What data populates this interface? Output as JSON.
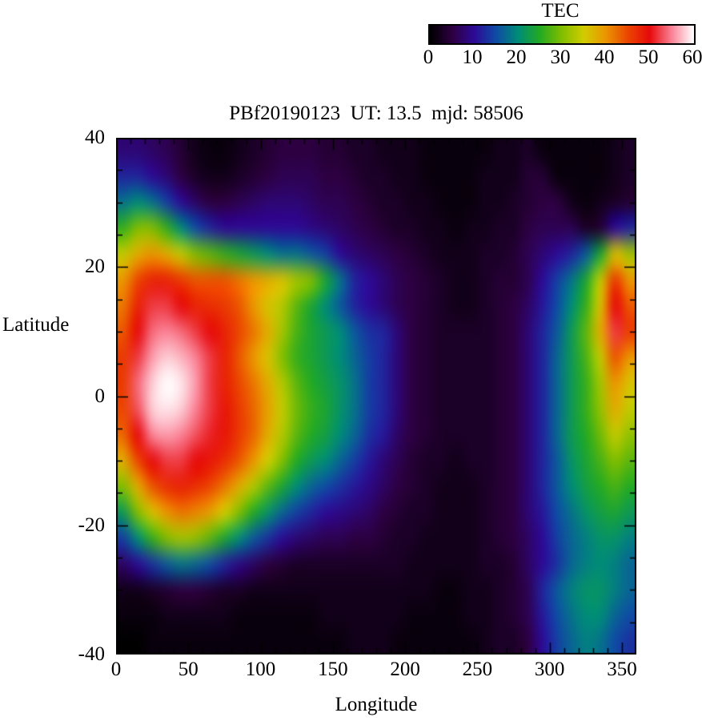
{
  "title": "PBf20190123  UT: 13.5  mjd: 58506",
  "colorbar": {
    "label": "TEC",
    "min": 0,
    "max": 60,
    "tick_labels": [
      "0",
      "10",
      "20",
      "30",
      "40",
      "50",
      "60"
    ]
  },
  "colormap": {
    "stops": [
      [
        0,
        "#000000"
      ],
      [
        5,
        "#2d0041"
      ],
      [
        10,
        "#2d0a96"
      ],
      [
        15,
        "#0f4ba5"
      ],
      [
        20,
        "#008c78"
      ],
      [
        25,
        "#23aa23"
      ],
      [
        30,
        "#82be00"
      ],
      [
        35,
        "#d2cd00"
      ],
      [
        40,
        "#eb9600"
      ],
      [
        45,
        "#eb4600"
      ],
      [
        50,
        "#e60a0a"
      ],
      [
        55,
        "#fa8296"
      ],
      [
        60,
        "#ffffff"
      ]
    ]
  },
  "chart_data": {
    "type": "heatmap",
    "title": "PBf20190123  UT: 13.5  mjd: 58506",
    "xlabel": "Longitude",
    "ylabel": "Latitude",
    "value_label": "TEC",
    "value_range": [
      0,
      60
    ],
    "x_range": [
      0,
      360
    ],
    "y_range": [
      -40,
      40
    ],
    "x_ticks": [
      0,
      50,
      100,
      150,
      200,
      250,
      300,
      350
    ],
    "x_minor_step": 10,
    "y_ticks": [
      -40,
      -20,
      0,
      20,
      40
    ],
    "y_minor_step": 5,
    "grid_cols_lon_step": 10,
    "grid_rows_lat_step": 4,
    "row_order": "latitude +38 (top) to -38 (bottom); columns longitude 5 to 355",
    "values": [
      [
        8,
        8,
        7,
        6,
        4,
        2,
        1,
        1,
        2,
        3,
        4,
        5,
        5,
        5,
        4,
        4,
        3,
        3,
        2,
        2,
        2,
        1,
        1,
        1,
        1,
        1,
        2,
        2,
        3,
        1,
        1,
        1,
        1,
        1,
        2,
        3
      ],
      [
        12,
        12,
        10,
        8,
        5,
        3,
        2,
        2,
        3,
        4,
        5,
        6,
        6,
        6,
        5,
        5,
        4,
        3,
        3,
        2,
        2,
        1,
        1,
        1,
        1,
        2,
        2,
        2,
        4,
        4,
        1,
        1,
        1,
        1,
        2,
        3
      ],
      [
        18,
        20,
        18,
        14,
        10,
        7,
        5,
        5,
        6,
        7,
        8,
        8,
        8,
        7,
        6,
        6,
        5,
        4,
        3,
        3,
        2,
        2,
        1,
        1,
        1,
        2,
        2,
        3,
        4,
        5,
        5,
        2,
        1,
        2,
        3,
        4
      ],
      [
        26,
        30,
        30,
        26,
        20,
        15,
        12,
        10,
        10,
        10,
        10,
        10,
        10,
        9,
        8,
        7,
        6,
        5,
        4,
        3,
        3,
        2,
        2,
        1,
        2,
        2,
        3,
        3,
        5,
        6,
        6,
        6,
        3,
        4,
        10,
        12
      ],
      [
        34,
        38,
        40,
        38,
        34,
        30,
        28,
        26,
        24,
        22,
        20,
        18,
        18,
        16,
        14,
        10,
        8,
        7,
        6,
        5,
        4,
        3,
        2,
        2,
        2,
        3,
        3,
        4,
        6,
        8,
        10,
        12,
        16,
        24,
        36,
        32
      ],
      [
        40,
        45,
        48,
        48,
        46,
        44,
        44,
        44,
        42,
        40,
        38,
        36,
        32,
        30,
        24,
        18,
        12,
        10,
        8,
        6,
        5,
        4,
        3,
        2,
        2,
        3,
        4,
        4,
        6,
        10,
        14,
        18,
        24,
        34,
        46,
        40
      ],
      [
        42,
        48,
        52,
        52,
        50,
        48,
        47,
        46,
        44,
        40,
        36,
        33,
        28,
        24,
        20,
        16,
        12,
        10,
        8,
        6,
        5,
        4,
        3,
        2,
        2,
        3,
        4,
        5,
        7,
        11,
        15,
        20,
        26,
        36,
        50,
        44
      ],
      [
        44,
        50,
        54,
        55,
        54,
        52,
        50,
        48,
        45,
        42,
        38,
        32,
        27,
        24,
        22,
        20,
        16,
        13,
        12,
        8,
        5,
        4,
        3,
        3,
        3,
        3,
        4,
        5,
        8,
        12,
        16,
        22,
        28,
        38,
        52,
        46
      ],
      [
        46,
        52,
        56,
        58,
        57,
        55,
        52,
        48,
        44,
        40,
        36,
        30,
        26,
        24,
        22,
        20,
        17,
        14,
        12,
        8,
        5,
        4,
        3,
        3,
        3,
        3,
        4,
        5,
        8,
        12,
        17,
        22,
        27,
        34,
        44,
        40
      ],
      [
        46,
        54,
        58,
        60,
        59,
        56,
        52,
        48,
        45,
        42,
        38,
        33,
        28,
        25,
        23,
        21,
        18,
        14,
        12,
        8,
        5,
        4,
        3,
        3,
        3,
        3,
        4,
        5,
        8,
        12,
        17,
        22,
        26,
        32,
        40,
        36
      ],
      [
        45,
        53,
        58,
        59,
        58,
        55,
        52,
        49,
        46,
        43,
        39,
        34,
        29,
        26,
        24,
        21,
        18,
        14,
        12,
        8,
        5,
        4,
        3,
        3,
        3,
        3,
        4,
        5,
        8,
        12,
        17,
        22,
        26,
        31,
        38,
        34
      ],
      [
        43,
        50,
        55,
        56,
        55,
        53,
        51,
        49,
        46,
        43,
        38,
        33,
        28,
        25,
        23,
        20,
        17,
        13,
        11,
        7,
        5,
        4,
        3,
        3,
        3,
        3,
        4,
        5,
        8,
        12,
        17,
        22,
        25,
        29,
        34,
        31
      ],
      [
        38,
        45,
        50,
        52,
        52,
        50,
        49,
        47,
        44,
        40,
        35,
        30,
        25,
        22,
        20,
        17,
        14,
        11,
        8,
        6,
        4,
        3,
        3,
        2,
        3,
        3,
        4,
        5,
        8,
        12,
        16,
        21,
        24,
        27,
        30,
        28
      ],
      [
        30,
        38,
        44,
        47,
        48,
        47,
        45,
        42,
        38,
        33,
        28,
        24,
        20,
        17,
        15,
        13,
        11,
        9,
        7,
        5,
        4,
        3,
        2,
        2,
        2,
        3,
        4,
        5,
        8,
        12,
        16,
        20,
        23,
        25,
        27,
        25
      ],
      [
        22,
        30,
        36,
        40,
        42,
        41,
        39,
        35,
        30,
        25,
        21,
        17,
        14,
        12,
        10,
        9,
        8,
        7,
        5,
        4,
        3,
        3,
        2,
        2,
        2,
        3,
        4,
        5,
        8,
        11,
        15,
        18,
        21,
        23,
        24,
        22
      ],
      [
        14,
        20,
        26,
        30,
        32,
        31,
        28,
        24,
        20,
        16,
        13,
        10,
        8,
        7,
        6,
        6,
        5,
        5,
        4,
        3,
        3,
        2,
        2,
        2,
        2,
        3,
        4,
        5,
        7,
        10,
        14,
        17,
        19,
        21,
        21,
        19
      ],
      [
        7,
        10,
        13,
        16,
        18,
        17,
        15,
        12,
        9,
        7,
        5,
        4,
        3,
        3,
        3,
        3,
        3,
        3,
        3,
        3,
        2,
        2,
        2,
        2,
        2,
        3,
        3,
        4,
        7,
        10,
        13,
        17,
        19,
        20,
        19,
        17
      ],
      [
        2,
        2,
        3,
        4,
        5,
        5,
        4,
        3,
        3,
        2,
        2,
        2,
        2,
        2,
        2,
        2,
        2,
        2,
        2,
        2,
        2,
        2,
        1,
        1,
        2,
        2,
        3,
        4,
        6,
        12,
        16,
        19,
        21,
        21,
        19,
        17
      ],
      [
        1,
        1,
        1,
        2,
        2,
        2,
        2,
        2,
        1,
        1,
        1,
        1,
        1,
        1,
        2,
        2,
        2,
        2,
        2,
        2,
        1,
        1,
        1,
        1,
        2,
        2,
        3,
        4,
        6,
        11,
        15,
        18,
        20,
        20,
        17,
        15
      ],
      [
        0,
        0,
        1,
        1,
        1,
        1,
        1,
        1,
        1,
        1,
        1,
        1,
        1,
        1,
        1,
        1,
        2,
        2,
        2,
        1,
        1,
        1,
        1,
        1,
        1,
        2,
        3,
        3,
        5,
        10,
        14,
        17,
        19,
        18,
        15,
        13
      ]
    ]
  }
}
